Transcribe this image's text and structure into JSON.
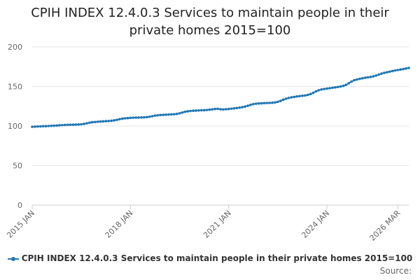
{
  "chart_data": {
    "type": "line",
    "title_line1": "CPIH INDEX 12.4.0.3 Services to maintain people in their",
    "title_line2": "private homes 2015=100",
    "ylim": [
      0,
      200
    ],
    "yticks": [
      "0",
      "50",
      "100",
      "150",
      "200"
    ],
    "xticks": [
      "2015 JAN",
      "2018 JAN",
      "2021 JAN",
      "2024 JAN",
      "2026 MAR"
    ],
    "x_start": "2015 JAN",
    "x_end": "2026 MAR",
    "color": "#1f77b4",
    "legend_label": "CPIH INDEX 12.4.0.3 Services to maintain people in their private homes 2015=100",
    "source_label": "Source:",
    "series": [
      {
        "name": "CPIH INDEX 12.4.0.3 Services to maintain people in their private homes 2015=100",
        "values": [
          99.0,
          99.2,
          99.4,
          99.5,
          99.7,
          99.8,
          100.0,
          100.2,
          100.4,
          100.6,
          100.9,
          101.1,
          101.3,
          101.5,
          101.6,
          101.7,
          101.8,
          101.9,
          102.2,
          102.7,
          103.4,
          104.2,
          104.8,
          105.1,
          105.4,
          105.7,
          105.9,
          106.1,
          106.3,
          106.6,
          107.1,
          107.8,
          108.6,
          109.2,
          109.7,
          110.0,
          110.3,
          110.5,
          110.6,
          110.7,
          110.8,
          110.9,
          111.2,
          111.7,
          112.4,
          113.1,
          113.6,
          113.9,
          114.1,
          114.3,
          114.5,
          114.7,
          114.9,
          115.3,
          116.0,
          117.0,
          118.0,
          118.6,
          119.0,
          119.3,
          119.5,
          119.7,
          119.9,
          120.0,
          120.2,
          120.6,
          121.1,
          121.5,
          121.8,
          121.2,
          120.9,
          121.2,
          121.5,
          121.9,
          122.3,
          122.7,
          123.2,
          123.8,
          124.6,
          125.6,
          126.7,
          127.6,
          128.2,
          128.5,
          128.7,
          128.9,
          129.1,
          129.2,
          129.4,
          129.8,
          130.6,
          131.8,
          133.2,
          134.5,
          135.5,
          136.2,
          136.8,
          137.3,
          137.8,
          138.2,
          138.6,
          139.3,
          140.4,
          142.0,
          143.8,
          145.2,
          146.2,
          146.8,
          147.3,
          147.8,
          148.3,
          148.8,
          149.3,
          149.9,
          150.7,
          152.0,
          154.0,
          156.2,
          157.9,
          158.8,
          159.6,
          160.3,
          161.0,
          161.5,
          162.0,
          162.8,
          163.8,
          165.0,
          166.2,
          167.2,
          168.0,
          168.7,
          169.5,
          170.2,
          170.8,
          171.4,
          172.0,
          172.7,
          173.4
        ]
      }
    ]
  }
}
